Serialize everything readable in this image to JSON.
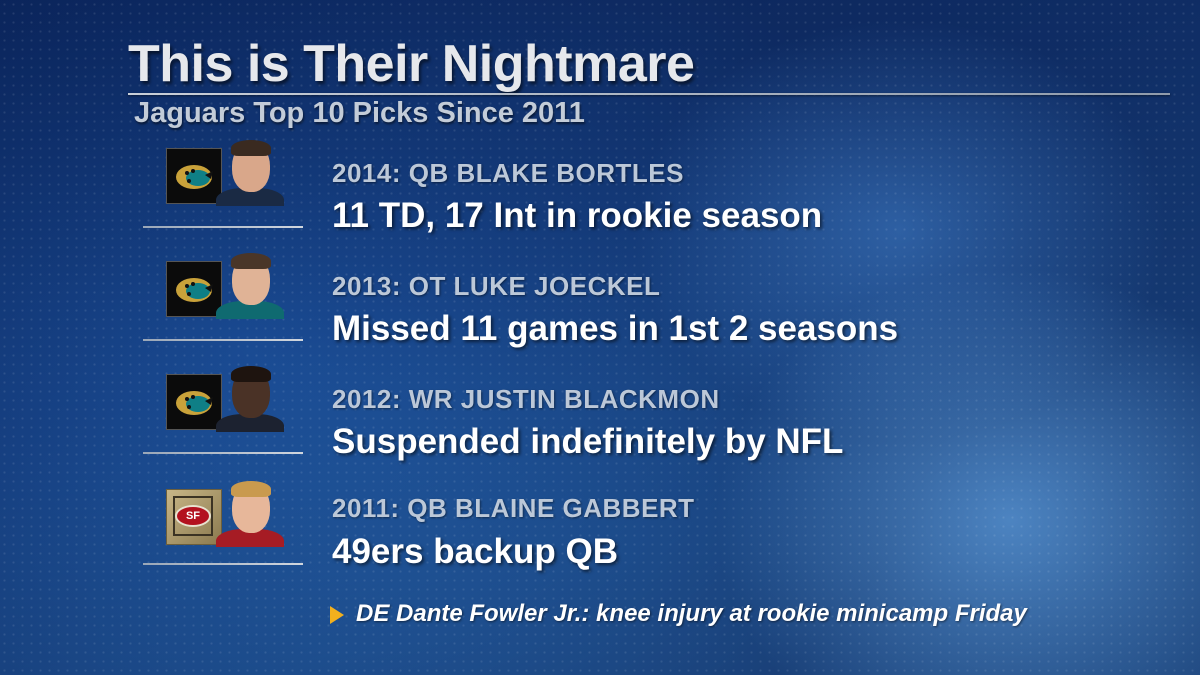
{
  "header": {
    "title": "This is Their Nightmare",
    "subtitle": "Jaguars Top 10 Picks Since 2011"
  },
  "picks": [
    {
      "label": "2014: QB BLAKE BORTLES",
      "stat": "11 TD, 17 Int in rookie season",
      "team_logo": "jaguars-logo",
      "headshot": "blake-bortles-headshot"
    },
    {
      "label": "2013: OT LUKE JOECKEL",
      "stat": "Missed 11 games in 1st 2 seasons",
      "team_logo": "jaguars-logo",
      "headshot": "luke-joeckel-headshot"
    },
    {
      "label": "2012: WR JUSTIN BLACKMON",
      "stat": "Suspended indefinitely by NFL",
      "team_logo": "jaguars-logo",
      "headshot": "justin-blackmon-headshot"
    },
    {
      "label": "2011: QB BLAINE GABBERT",
      "stat": "49ers backup QB",
      "team_logo": "49ers-logo",
      "sf_logo_text": "SF",
      "headshot": "blaine-gabbert-headshot"
    }
  ],
  "note": {
    "icon": "triangle-bullet-icon",
    "text": "DE Dante Fowler Jr.: knee injury at rookie minicamp Friday"
  },
  "colors": {
    "accent_triangle": "#f2b01e",
    "jaguar_teal": "#0f7f86",
    "jaguar_gold": "#c9a23a",
    "niners_red": "#b3121f"
  }
}
